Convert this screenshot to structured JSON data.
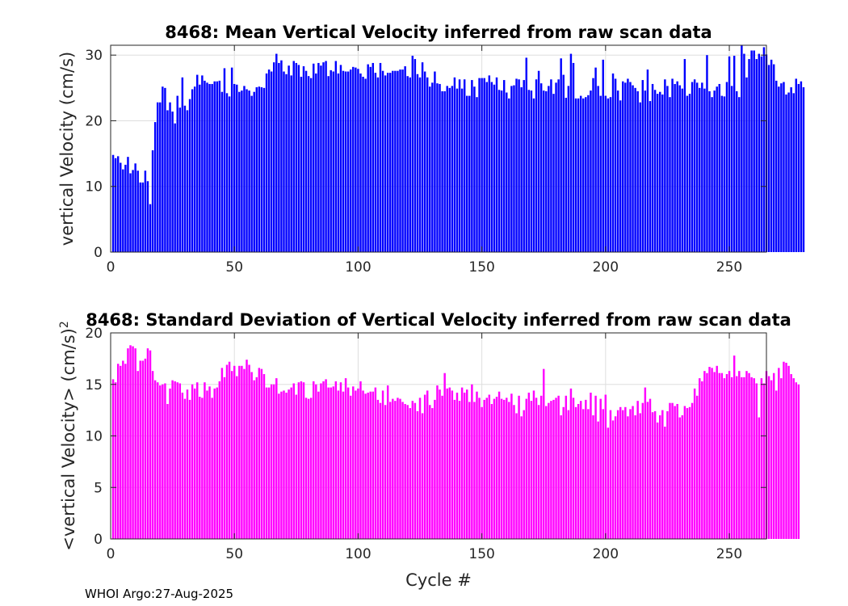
{
  "footer": "WHOI Argo:27-Aug-2025",
  "chart_data": [
    {
      "type": "bar",
      "title": "8468: Mean Vertical Velocity inferred from raw scan data",
      "xlabel": "",
      "ylabel": "vertical Velocity (cm/s)",
      "xlim": [
        0,
        265
      ],
      "ylim": [
        0,
        31.5
      ],
      "xticks": [
        0,
        50,
        100,
        150,
        200,
        250
      ],
      "yticks": [
        0,
        10,
        20,
        30
      ],
      "grid": true,
      "color": "#0000ff",
      "x_start": 1,
      "values": [
        14.8,
        14.3,
        14.6,
        13.6,
        12.6,
        13.3,
        14.5,
        12.0,
        12.5,
        13.5,
        12.4,
        10.6,
        10.6,
        12.4,
        10.8,
        7.3,
        15.5,
        19.8,
        22.8,
        22.8,
        25.2,
        25.0,
        21.6,
        22.8,
        21.4,
        19.6,
        23.8,
        22.0,
        26.6,
        22.3,
        21.6,
        23.3,
        24.8,
        25.2,
        27.0,
        25.5,
        26.9,
        26.1,
        25.8,
        25.6,
        25.6,
        26.0,
        26.0,
        26.1,
        24.4,
        28.0,
        24.2,
        23.7,
        28.1,
        25.6,
        25.5,
        24.4,
        24.6,
        25.3,
        24.8,
        24.6,
        23.8,
        24.4,
        25.1,
        25.2,
        25.1,
        25.0,
        27.2,
        27.8,
        27.5,
        28.9,
        30.2,
        28.8,
        29.2,
        27.5,
        27.1,
        28.4,
        26.9,
        29.1,
        28.8,
        28.5,
        26.7,
        28.3,
        27.6,
        26.8,
        26.5,
        28.7,
        27.2,
        28.8,
        28.4,
        28.9,
        29.1,
        26.8,
        27.7,
        27.5,
        29.1,
        27.2,
        28.5,
        27.6,
        27.5,
        27.5,
        27.8,
        28.2,
        28.1,
        27.9,
        27.2,
        26.7,
        26.4,
        28.6,
        28.2,
        28.8,
        27.3,
        26.6,
        28.8,
        27.6,
        26.9,
        27.3,
        27.3,
        27.6,
        27.6,
        27.6,
        27.8,
        27.8,
        28.3,
        26.8,
        26.6,
        29.9,
        29.4,
        27.1,
        26.6,
        28.9,
        27.5,
        26.6,
        25.2,
        25.8,
        27.5,
        25.7,
        25.6,
        24.5,
        24.5,
        25.3,
        25.0,
        25.3,
        26.6,
        24.9,
        26.3,
        24.9,
        26.3,
        23.8,
        23.8,
        26.2,
        25.2,
        23.6,
        26.5,
        26.5,
        26.5,
        25.9,
        26.9,
        25.9,
        25.5,
        26.6,
        24.7,
        24.6,
        26.2,
        24.3,
        23.4,
        25.3,
        25.4,
        26.4,
        26.3,
        25.1,
        26.2,
        29.6,
        24.7,
        24.6,
        23.4,
        26.3,
        27.6,
        25.7,
        24.6,
        24.5,
        25.3,
        26.3,
        24.1,
        25.8,
        26.3,
        29.5,
        27.0,
        23.5,
        25.3,
        30.2,
        28.8,
        23.4,
        23.4,
        23.8,
        23.4,
        23.6,
        23.9,
        24.6,
        26.5,
        28.1,
        25.3,
        23.8,
        29.3,
        23.8,
        23.4,
        23.6,
        27.2,
        26.4,
        24.6,
        23.1,
        26.0,
        25.8,
        26.4,
        25.9,
        25.4,
        25.0,
        24.5,
        22.8,
        26.2,
        24.6,
        27.8,
        23.0,
        25.6,
        24.7,
        24.1,
        24.4,
        24.0,
        26.3,
        25.3,
        23.6,
        26.4,
        25.6,
        26.0,
        25.4,
        24.9,
        29.4,
        23.8,
        24.1,
        25.9,
        26.3,
        25.8,
        25.0,
        25.8,
        24.9,
        30.0,
        24.5,
        23.6,
        24.6,
        25.2,
        25.6,
        23.8,
        23.7,
        25.9,
        29.8,
        25.3,
        29.9,
        24.5,
        23.6,
        31.5,
        30.2,
        26.6,
        29.4,
        30.7,
        30.7,
        29.4,
        30.2,
        29.8,
        31.2,
        30.1,
        28.5,
        29.3,
        28.6,
        26.1,
        25.2,
        25.7,
        25.9,
        24.0,
        24.3,
        25.1,
        24.2,
        26.4,
        25.6,
        26.0,
        25.1
      ]
    },
    {
      "type": "bar",
      "title": "8468: Standard Deviation of Vertical Velocity inferred from raw scan data",
      "xlabel": "Cycle #",
      "ylabel": "<vertical Velocity> (cm/s)",
      "ylabel_superscript": "2",
      "xlim": [
        0,
        265
      ],
      "ylim": [
        0,
        20
      ],
      "xticks": [
        0,
        50,
        100,
        150,
        200,
        250
      ],
      "yticks": [
        0,
        5,
        10,
        15,
        20
      ],
      "grid": true,
      "color": "#ff00ff",
      "x_start": 1,
      "values": [
        15.5,
        15.2,
        17.0,
        16.8,
        17.3,
        17.0,
        18.5,
        18.8,
        18.7,
        18.5,
        16.3,
        17.3,
        17.3,
        17.5,
        18.5,
        18.3,
        16.3,
        15.4,
        15.2,
        14.9,
        15.0,
        15.1,
        13.1,
        14.6,
        15.4,
        15.3,
        15.2,
        15.1,
        14.2,
        13.6,
        14.5,
        13.5,
        15.0,
        14.6,
        15.2,
        13.8,
        13.7,
        15.2,
        14.4,
        14.8,
        13.7,
        14.6,
        14.7,
        15.3,
        16.6,
        15.7,
        16.9,
        17.2,
        16.3,
        16.8,
        15.8,
        16.8,
        16.8,
        16.5,
        17.4,
        16.9,
        16.2,
        15.4,
        15.7,
        16.6,
        16.5,
        16.0,
        14.7,
        14.7,
        15.0,
        15.0,
        15.6,
        14.1,
        14.3,
        14.4,
        14.2,
        14.5,
        14.7,
        15.1,
        14.0,
        15.2,
        15.3,
        15.2,
        13.7,
        13.6,
        13.7,
        15.3,
        15.0,
        14.3,
        15.1,
        15.3,
        15.5,
        14.7,
        14.7,
        14.8,
        15.3,
        14.4,
        15.2,
        14.3,
        15.6,
        14.7,
        13.9,
        14.8,
        14.4,
        14.6,
        15.3,
        14.4,
        14.1,
        14.2,
        14.3,
        14.3,
        14.7,
        13.5,
        13.2,
        14.4,
        13.0,
        14.9,
        13.3,
        13.6,
        13.4,
        13.7,
        13.6,
        13.3,
        13.1,
        13.0,
        12.7,
        13.4,
        13.2,
        12.4,
        13.7,
        12.2,
        14.0,
        14.4,
        13.0,
        12.7,
        13.5,
        14.9,
        14.5,
        13.9,
        16.1,
        14.6,
        14.7,
        14.4,
        13.5,
        14.2,
        13.4,
        14.7,
        14.2,
        14.5,
        13.3,
        15.0,
        13.3,
        14.3,
        13.7,
        12.8,
        13.5,
        13.7,
        14.0,
        13.1,
        13.6,
        13.8,
        14.3,
        13.6,
        13.5,
        13.7,
        13.3,
        14.1,
        13.0,
        12.2,
        13.9,
        11.9,
        12.5,
        13.6,
        14.2,
        13.4,
        14.4,
        13.7,
        13.0,
        13.9,
        16.5,
        12.9,
        13.2,
        13.4,
        13.5,
        13.7,
        13.9,
        12.0,
        12.8,
        13.9,
        12.5,
        14.6,
        13.7,
        12.8,
        13.1,
        13.4,
        12.6,
        13.5,
        12.6,
        14.2,
        12.0,
        13.9,
        11.4,
        13.6,
        12.6,
        14.0,
        10.8,
        12.5,
        11.5,
        11.9,
        12.5,
        12.8,
        12.5,
        12.8,
        11.9,
        12.6,
        12.9,
        12.0,
        13.4,
        12.2,
        13.2,
        14.7,
        13.3,
        13.6,
        12.3,
        12.4,
        11.3,
        12.0,
        12.5,
        10.9,
        12.4,
        13.2,
        13.2,
        12.9,
        13.1,
        11.8,
        12.0,
        12.9,
        12.7,
        12.8,
        13.2,
        14.6,
        13.9,
        15.6,
        15.3,
        16.3,
        16.1,
        16.7,
        16.6,
        16.2,
        16.8,
        16.1,
        16.1,
        15.6,
        16.0,
        16.3,
        15.7,
        17.8,
        15.8,
        16.3,
        15.7,
        15.7,
        16.3,
        16.1,
        15.7,
        15.6,
        15.1,
        11.8,
        15.6,
        15.1,
        16.3,
        15.8,
        15.4,
        16.1,
        14.4,
        16.6,
        15.6,
        17.2,
        17.1,
        16.8,
        16.0,
        15.6,
        15.2,
        15.0
      ]
    }
  ]
}
